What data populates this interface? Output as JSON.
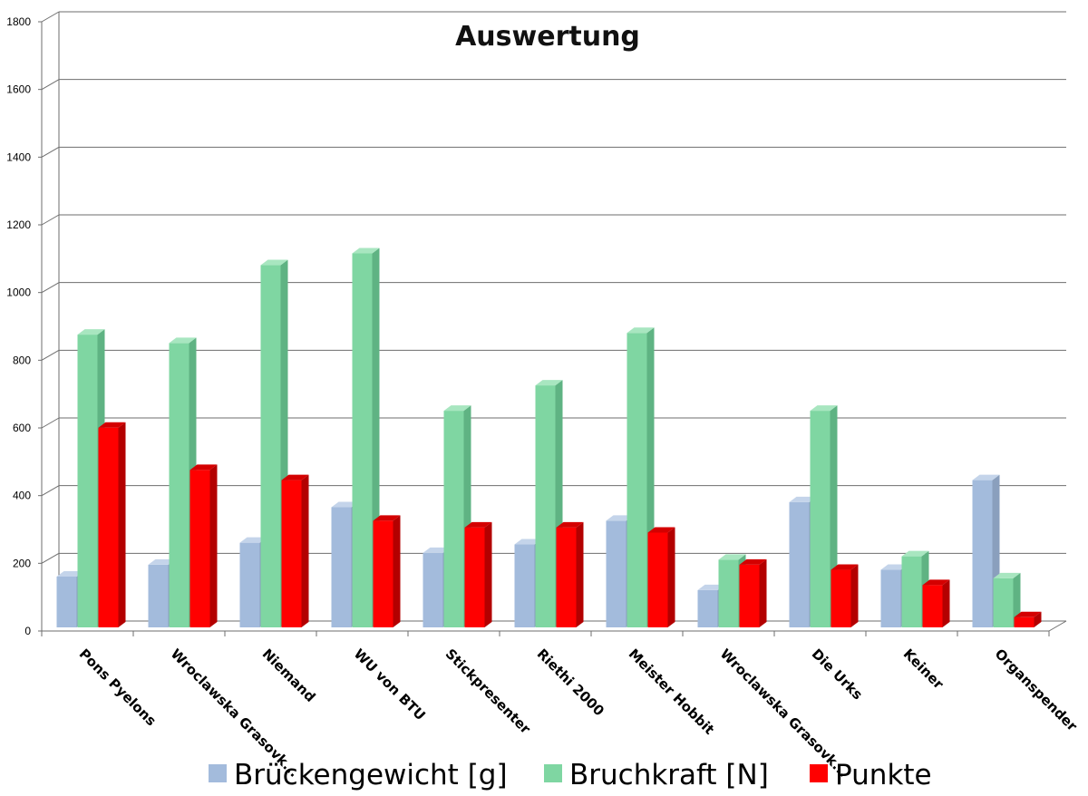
{
  "chart_data": {
    "type": "bar",
    "title": "Auswertung",
    "xlabel": "",
    "ylabel": "",
    "ylim": [
      0,
      1800
    ],
    "yticks": [
      0,
      200,
      400,
      600,
      800,
      1000,
      1200,
      1400,
      1600,
      1800
    ],
    "grid": true,
    "legend_position": "bottom",
    "categories": [
      "Pons Pyelons",
      "Wroclawska Grasovka",
      "Niemand",
      "WU von BTU",
      "Stickpresenter",
      "Riethi 2000",
      "Meister Hobbit",
      "Wroclawska Grasovka",
      "Die Urks",
      "Keiner",
      "Organspender"
    ],
    "category_labels_shown": [
      "Pons Pyelons",
      "Wroclawska Grasovk...",
      "Niemand",
      "WU von BTU",
      "Stickpresenter",
      "Riethi 2000",
      "Meister Hobbit",
      "Wroclawska Grasovk...",
      "Die Urks",
      "Keiner",
      "Organspender"
    ],
    "series": [
      {
        "name": "Brückengewicht [g]",
        "color": "#a3bbdc",
        "side_color": "#8a9fbd",
        "top_color": "#c4d4ea",
        "values": [
          150,
          185,
          250,
          355,
          220,
          245,
          315,
          110,
          370,
          170,
          435
        ]
      },
      {
        "name": "Bruchkraft [N]",
        "color": "#7fd6a2",
        "side_color": "#5fb383",
        "top_color": "#a8e6c0",
        "values": [
          865,
          840,
          1070,
          1105,
          640,
          715,
          870,
          200,
          640,
          210,
          145
        ]
      },
      {
        "name": "Punkte",
        "color": "#ff0000",
        "side_color": "#b30000",
        "top_color": "#d40000",
        "values": [
          590,
          465,
          435,
          315,
          295,
          295,
          280,
          185,
          170,
          125,
          30
        ]
      }
    ]
  }
}
